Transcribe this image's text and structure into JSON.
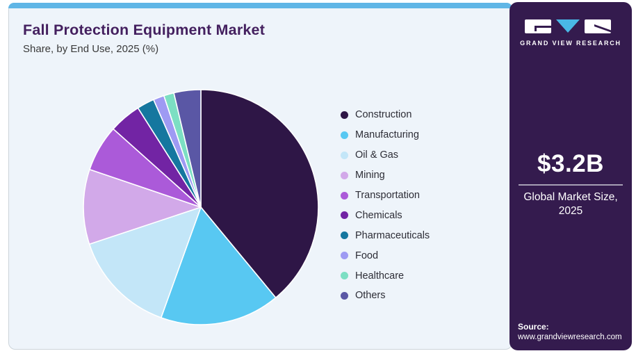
{
  "header": {
    "title": "Fall Protection Equipment Market",
    "subtitle": "Share, by End Use, 2025 (%)"
  },
  "chart_data": {
    "type": "pie",
    "title": "Fall Protection Equipment Market Share, by End Use, 2025 (%)",
    "categories": [
      "Construction",
      "Manufacturing",
      "Oil & Gas",
      "Mining",
      "Transportation",
      "Chemicals",
      "Pharmaceuticals",
      "Food",
      "Healthcare",
      "Others"
    ],
    "values": [
      39.0,
      16.5,
      14.4,
      10.3,
      6.4,
      4.4,
      2.4,
      1.5,
      1.4,
      3.7
    ],
    "unit": "%",
    "colors": [
      "#2e1646",
      "#58c8f2",
      "#c3e6f8",
      "#d2a9e9",
      "#ab5ad9",
      "#7224a4",
      "#15779f",
      "#9e9af3",
      "#7cdfc3",
      "#5a57a5"
    ],
    "legend_position": "right",
    "start_angle_deg": -90,
    "direction": "clockwise",
    "slice_border_color": "#ffffff"
  },
  "sidebar": {
    "brand": "GRAND VIEW RESEARCH",
    "market_size": "$3.2B",
    "market_size_label_line1": "Global Market Size,",
    "market_size_label_line2": "2025",
    "source_label": "Source:",
    "source_url": "www.grandviewresearch.com",
    "colors": {
      "background": "#341b4e",
      "logo_accent": "#49b8e6"
    }
  },
  "card": {
    "accent_color": "#60b6e6",
    "background": "#eef4fa"
  }
}
